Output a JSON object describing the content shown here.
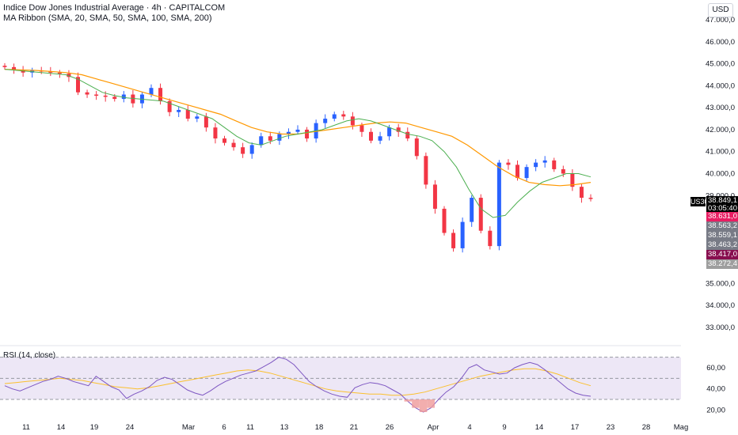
{
  "header": {
    "title": "Indice Dow Jones Industrial Average · 4h · CAPITALCOM",
    "indicator": "MA Ribbon (SMA, 20, SMA, 50, SMA, 100, SMA, 200)",
    "rsi_label": "RSI (14, close)",
    "currency": "USD"
  },
  "price_tags": {
    "symbol": "US30",
    "last_price": "38.849,1",
    "countdown": "03:05:40",
    "levels": [
      "38.631,0",
      "38.563,2",
      "38.559,1",
      "38.463,2",
      "38.417,0",
      "38.272,4"
    ],
    "colors": [
      "#e91e63",
      "#787b86",
      "#787b86",
      "#787b86",
      "#880e4f",
      "#9e9e9e"
    ]
  },
  "colors": {
    "up": "#2962ff",
    "down": "#f23645",
    "ma_fast": "#4caf50",
    "ma_slow": "#ff9800",
    "rsi_line": "#7e57c2",
    "rsi_ma": "#fbc02d",
    "rsi_band": "#ede7f6"
  },
  "chart_data": [
    {
      "type": "candlestick",
      "title": "Indice Dow Jones Industrial Average · 4h · CAPITALCOM",
      "y_ticks": [
        "47.000,0",
        "46.000,0",
        "45.000,0",
        "44.000,0",
        "43.000,0",
        "42.000,0",
        "41.000,0",
        "40.000,0",
        "39.000,0",
        "35.000,0",
        "34.000,0",
        "33.000,0"
      ],
      "x_ticks": [
        "11",
        "14",
        "19",
        "24",
        "Mar",
        "6",
        "11",
        "13",
        "18",
        "21",
        "26",
        "Apr",
        "4",
        "9",
        "14",
        "17",
        "23",
        "28",
        "Mag"
      ],
      "ylim": [
        32600,
        47400
      ],
      "ohlc_close_path": [
        44850,
        44700,
        44600,
        44700,
        44650,
        44600,
        44550,
        44400,
        43700,
        43600,
        43550,
        43500,
        43400,
        43600,
        43200,
        43600,
        43900,
        43300,
        42800,
        42900,
        42500,
        42600,
        42100,
        41600,
        41400,
        41200,
        40900,
        41300,
        41700,
        41500,
        41800,
        41900,
        42000,
        41600,
        42300,
        42500,
        42700,
        42600,
        42200,
        41900,
        41500,
        41700,
        42100,
        41900,
        41600,
        40800,
        39500,
        38400,
        37300,
        36600,
        37800,
        38900,
        37400,
        36700,
        40500,
        40400,
        39800,
        40300,
        40500,
        40600,
        40200,
        40000,
        39400,
        38900,
        38850
      ],
      "ma_fast_path": [
        44750,
        44700,
        44650,
        44600,
        44550,
        44500,
        44300,
        44000,
        43700,
        43550,
        43450,
        43400,
        43350,
        43300,
        43100,
        42900,
        42700,
        42500,
        42100,
        41700,
        41400,
        41300,
        41500,
        41700,
        41800,
        41900,
        42000,
        42200,
        42400,
        42500,
        42400,
        42200,
        42000,
        41800,
        41700,
        41500,
        41000,
        40300,
        39300,
        38400,
        38000,
        38100,
        38700,
        39200,
        39600,
        39800,
        40000,
        40000,
        39850
      ],
      "ma_slow_path": [
        44750,
        44720,
        44700,
        44650,
        44600,
        44500,
        44300,
        44100,
        43900,
        43700,
        43500,
        43300,
        43100,
        42900,
        42700,
        42400,
        42100,
        41900,
        41800,
        41800,
        41900,
        42000,
        42100,
        42200,
        42300,
        42350,
        42300,
        42100,
        41900,
        41700,
        41300,
        40800,
        40300,
        39900,
        39600,
        39500,
        39450,
        39500,
        39600
      ],
      "last_price": 38849.1
    },
    {
      "type": "line",
      "title": "RSI (14, close)",
      "y_ticks": [
        "60,00",
        "40,00",
        "20,00"
      ],
      "band_levels": [
        70,
        50,
        30
      ],
      "ylim": [
        15,
        75
      ],
      "rsi_path": [
        43,
        40,
        38,
        41,
        44,
        47,
        49,
        52,
        50,
        47,
        45,
        43,
        52,
        47,
        42,
        39,
        31,
        35,
        38,
        42,
        48,
        51,
        49,
        44,
        39,
        36,
        34,
        38,
        43,
        47,
        50,
        53,
        55,
        57,
        61,
        65,
        70,
        68,
        63,
        55,
        47,
        42,
        38,
        35,
        33,
        32,
        41,
        44,
        46,
        45,
        43,
        39,
        35,
        28,
        22,
        18,
        22,
        30,
        37,
        42,
        50,
        60,
        63,
        58,
        56,
        54,
        55,
        60,
        63,
        65,
        63,
        58,
        52,
        46,
        40,
        36,
        34,
        33
      ],
      "rsi_ma_path": [
        45,
        46,
        47,
        48,
        49,
        50,
        49,
        48,
        46,
        44,
        42,
        41,
        40,
        41,
        43,
        45,
        47,
        49,
        51,
        53,
        55,
        57,
        58,
        57,
        55,
        52,
        49,
        46,
        43,
        40,
        38,
        37,
        36,
        35,
        35,
        34,
        34,
        35,
        37,
        40,
        43,
        46,
        49,
        52,
        54,
        56,
        58,
        59,
        59,
        57,
        54,
        50,
        46,
        43
      ]
    }
  ]
}
